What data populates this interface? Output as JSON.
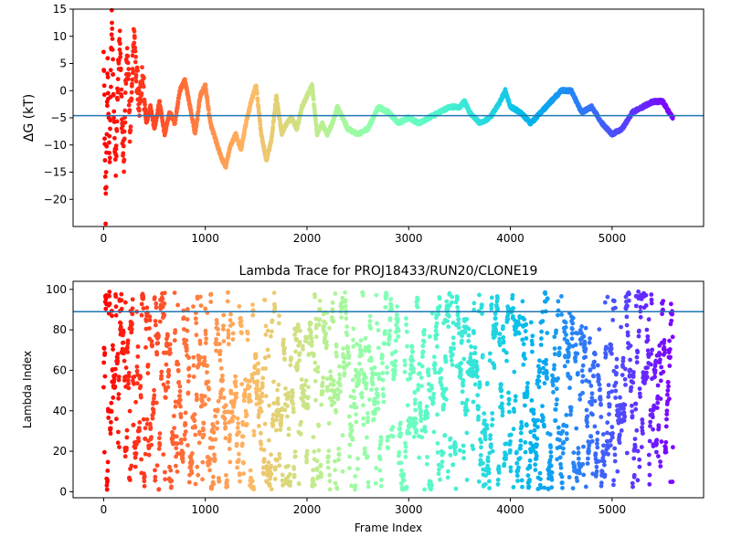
{
  "chart_data": [
    {
      "type": "scatter",
      "title": "",
      "xlabel": "",
      "ylabel": "ΔG (kT)",
      "xlim": [
        -300,
        5900
      ],
      "ylim": [
        -25,
        15
      ],
      "xticks": [
        0,
        1000,
        2000,
        3000,
        4000,
        5000
      ],
      "yticks": [
        -20,
        -15,
        -10,
        -5,
        0,
        5,
        10,
        15
      ],
      "xtick_labels": [
        "0",
        "1000",
        "2000",
        "3000",
        "4000",
        "5000"
      ],
      "ytick_labels": [
        "−20",
        "−15",
        "−10",
        "−5",
        "0",
        "5",
        "10",
        "15"
      ],
      "hline": -4.6,
      "hline_color": "#1f77b4",
      "colormap": "rainbow",
      "grid": false,
      "n_points": 5600,
      "series_knots": [
        [
          0,
          10
        ],
        [
          20,
          -23
        ],
        [
          40,
          3
        ],
        [
          60,
          -12
        ],
        [
          80,
          14
        ],
        [
          100,
          -4
        ],
        [
          120,
          -15
        ],
        [
          140,
          2
        ],
        [
          160,
          9
        ],
        [
          180,
          -6
        ],
        [
          200,
          -13
        ],
        [
          220,
          3
        ],
        [
          240,
          6
        ],
        [
          260,
          -9
        ],
        [
          280,
          2
        ],
        [
          300,
          11
        ],
        [
          320,
          4
        ],
        [
          350,
          -2
        ],
        [
          380,
          3
        ],
        [
          420,
          -6
        ],
        [
          460,
          -3
        ],
        [
          500,
          -7
        ],
        [
          550,
          -2
        ],
        [
          600,
          -8
        ],
        [
          650,
          -4
        ],
        [
          700,
          -6
        ],
        [
          750,
          0
        ],
        [
          800,
          2
        ],
        [
          850,
          -3
        ],
        [
          900,
          -8
        ],
        [
          950,
          -1
        ],
        [
          1000,
          1
        ],
        [
          1050,
          -6
        ],
        [
          1100,
          -9
        ],
        [
          1150,
          -12
        ],
        [
          1200,
          -14
        ],
        [
          1250,
          -10
        ],
        [
          1300,
          -8
        ],
        [
          1350,
          -11
        ],
        [
          1400,
          -6
        ],
        [
          1450,
          -2
        ],
        [
          1500,
          1
        ],
        [
          1550,
          -8
        ],
        [
          1600,
          -13
        ],
        [
          1650,
          -9
        ],
        [
          1700,
          -1
        ],
        [
          1750,
          -8
        ],
        [
          1800,
          -6
        ],
        [
          1850,
          -5
        ],
        [
          1900,
          -7
        ],
        [
          1950,
          -3
        ],
        [
          2000,
          -1
        ],
        [
          2050,
          1
        ],
        [
          2100,
          -8
        ],
        [
          2150,
          -6
        ],
        [
          2200,
          -8
        ],
        [
          2250,
          -6
        ],
        [
          2300,
          -3
        ],
        [
          2350,
          -5
        ],
        [
          2400,
          -7
        ],
        [
          2500,
          -8
        ],
        [
          2600,
          -7
        ],
        [
          2700,
          -3
        ],
        [
          2800,
          -4
        ],
        [
          2900,
          -6
        ],
        [
          3000,
          -5
        ],
        [
          3100,
          -6
        ],
        [
          3200,
          -5
        ],
        [
          3300,
          -4
        ],
        [
          3400,
          -3
        ],
        [
          3500,
          -3
        ],
        [
          3550,
          -2
        ],
        [
          3600,
          -4
        ],
        [
          3700,
          -6
        ],
        [
          3800,
          -5
        ],
        [
          3900,
          -2
        ],
        [
          3950,
          0
        ],
        [
          4000,
          -3
        ],
        [
          4100,
          -4
        ],
        [
          4200,
          -6
        ],
        [
          4300,
          -4
        ],
        [
          4400,
          -2
        ],
        [
          4500,
          0
        ],
        [
          4600,
          0
        ],
        [
          4700,
          -4
        ],
        [
          4800,
          -3
        ],
        [
          4900,
          -6
        ],
        [
          5000,
          -8
        ],
        [
          5100,
          -7
        ],
        [
          5200,
          -4
        ],
        [
          5300,
          -3
        ],
        [
          5400,
          -2
        ],
        [
          5500,
          -2
        ],
        [
          5560,
          -4
        ],
        [
          5600,
          -5
        ]
      ]
    },
    {
      "type": "scatter",
      "title": "Lambda Trace for PROJ18433/RUN20/CLONE19",
      "xlabel": "Frame Index",
      "ylabel": "Lambda Index",
      "xlim": [
        -300,
        5900
      ],
      "ylim": [
        -3,
        104
      ],
      "xticks": [
        0,
        1000,
        2000,
        3000,
        4000,
        5000
      ],
      "yticks": [
        0,
        20,
        40,
        60,
        80,
        100
      ],
      "xtick_labels": [
        "0",
        "1000",
        "2000",
        "3000",
        "4000",
        "5000"
      ],
      "ytick_labels": [
        "0",
        "20",
        "40",
        "60",
        "80",
        "100"
      ],
      "hline": 89,
      "hline_color": "#1f77b4",
      "colormap": "rainbow",
      "grid": false,
      "n_points": 5600,
      "value_range": [
        1,
        99
      ]
    }
  ]
}
